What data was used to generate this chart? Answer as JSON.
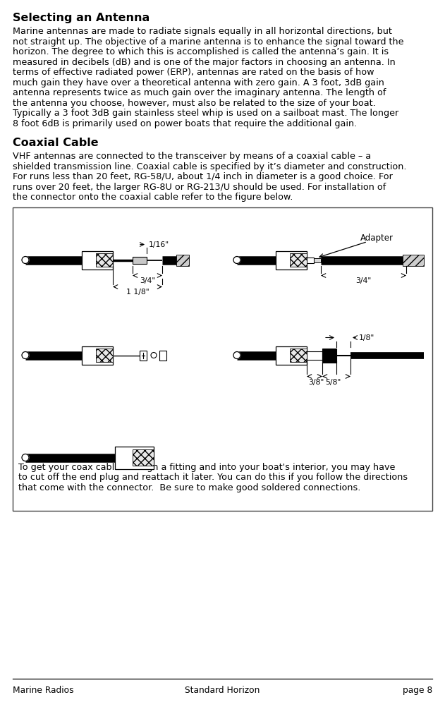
{
  "title": "Selecting an Antenna",
  "section2_title": "Coaxial Cable",
  "para1_lines": [
    "Marine antennas are made to radiate signals equally in all horizontal directions, but",
    "not straight up. The objective of a marine antenna is to enhance the signal toward the",
    "horizon. The degree to which this is accomplished is called the antenna’s gain. It is",
    "measured in decibels (dB) and is one of the major factors in choosing an antenna. In",
    "terms of effective radiated power (ERP), antennas are rated on the basis of how",
    "much gain they have over a theoretical antenna with zero gain. A 3 foot, 3dB gain",
    "antenna represents twice as much gain over the imaginary antenna. The length of",
    "the antenna you choose, however, must also be related to the size of your boat.",
    "Typically a 3 foot 3dB gain stainless steel whip is used on a sailboat mast. The longer",
    "8 foot 6dB is primarily used on power boats that require the additional gain."
  ],
  "para2_lines": [
    "VHF antennas are connected to the transceiver by means of a coaxial cable – a",
    "shielded transmission line. Coaxial cable is specified by it’s diameter and construction.",
    "For runs less than 20 feet, RG-58/U, about 1/4 inch in diameter is a good choice. For",
    "runs over 20 feet, the larger RG-8U or RG-213/U should be used. For installation of",
    "the connector onto the coaxial cable refer to the figure below."
  ],
  "para3_lines": [
    "To get your coax cable through a fitting and into your boat's interior, you may have",
    "to cut off the end plug and reattach it later. You can do this if you follow the directions",
    "that come with the connector.  Be sure to make good soldered connections."
  ],
  "footer_left": "Marine Radios",
  "footer_center": "Standard Horizon",
  "footer_right": "page 8",
  "bg_color": "#ffffff",
  "text_color": "#000000"
}
